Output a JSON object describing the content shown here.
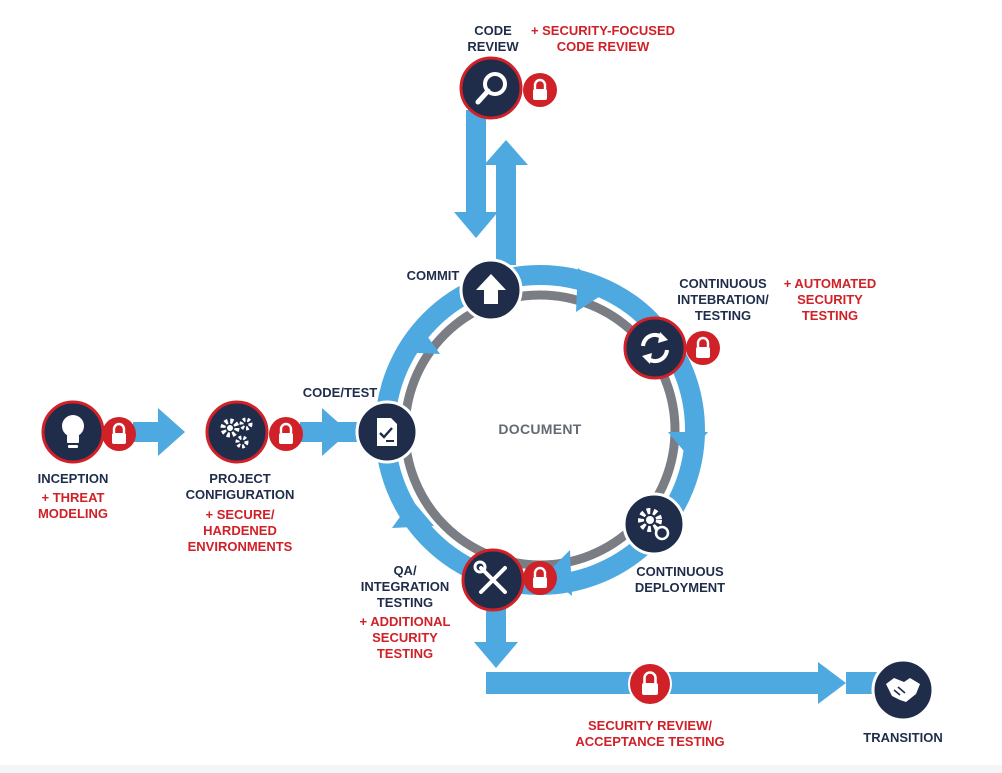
{
  "colors": {
    "arrow_blue": "#4ea9e0",
    "navy": "#1f2d4a",
    "security_red": "#cf2127",
    "inner_ring_gray": "#7a7d83",
    "label_red": "#cf2127"
  },
  "center_label": "DOCUMENT",
  "stages": {
    "inception": {
      "name": "INCEPTION",
      "security": "+ THREAT\nMODELING",
      "icon": "lightbulb-icon",
      "locked": true
    },
    "project_configuration": {
      "name": "PROJECT\nCONFIGURATION",
      "security": "+ SECURE/\nHARDENED\nENVIRONMENTS",
      "icon": "gears-icon",
      "locked": true
    },
    "code_test": {
      "name": "CODE/TEST",
      "icon": "checklist-document-icon",
      "locked": false
    },
    "commit": {
      "name": "COMMIT",
      "icon": "upload-arrow-icon",
      "locked": false
    },
    "code_review": {
      "name": "CODE\nREVIEW",
      "security": "+ SECURITY-FOCUSED\nCODE REVIEW",
      "icon": "magnifier-icon",
      "locked": true
    },
    "continuous_integration": {
      "name": "CONTINUOUS\nINTEBRATION/\nTESTING",
      "security": "+ AUTOMATED\nSECURITY\nTESTING",
      "icon": "refresh-arrows-icon",
      "locked": true
    },
    "continuous_deployment": {
      "name": "CONTINUOUS\nDEPLOYMENT",
      "icon": "gear-sync-icon",
      "locked": false
    },
    "qa_integration": {
      "name": "QA/\nINTEGRATION\nTESTING",
      "security": "+ ADDITIONAL\nSECURITY\nTESTING",
      "icon": "wrench-screwdriver-icon",
      "locked": true
    },
    "security_review": {
      "name": "SECURITY REVIEW/\nACCEPTANCE TESTING",
      "icon": "lock-icon",
      "locked": true
    },
    "transition": {
      "name": "TRANSITION",
      "icon": "handshake-icon",
      "locked": false
    }
  }
}
